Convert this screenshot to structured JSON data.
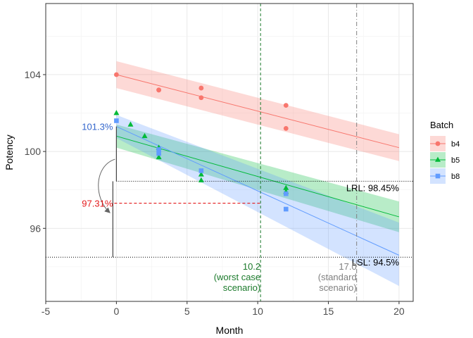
{
  "chart_data": {
    "type": "scatter",
    "xlabel": "Month",
    "ylabel": "Potency",
    "xlim": [
      -5,
      21
    ],
    "ylim": [
      92.2,
      107.7
    ],
    "x_ticks": [
      -5,
      0,
      5,
      10,
      15,
      20
    ],
    "x_tick_labels": [
      "-5",
      "0",
      "5",
      "10",
      "15",
      "20"
    ],
    "y_ticks": [
      96,
      100,
      104
    ],
    "y_tick_labels": [
      "96",
      "100",
      "104"
    ],
    "grid": true,
    "legend": {
      "title": "Batch",
      "position": "right"
    },
    "series": [
      {
        "name": "b4",
        "color": "#F8766D",
        "marker": "circle",
        "points": [
          [
            0,
            104.0
          ],
          [
            3,
            103.2
          ],
          [
            3,
            103.2
          ],
          [
            6,
            103.3
          ],
          [
            6,
            102.8
          ],
          [
            12,
            102.4
          ],
          [
            12,
            101.2
          ]
        ],
        "fit": {
          "x": [
            0,
            20
          ],
          "y": [
            104.0,
            100.2
          ]
        },
        "band": {
          "x": [
            0,
            20
          ],
          "lower": [
            103.3,
            99.5
          ],
          "upper": [
            104.7,
            100.9
          ]
        }
      },
      {
        "name": "b5",
        "color": "#00BA38",
        "marker": "triangle",
        "points": [
          [
            0,
            102.0
          ],
          [
            1,
            101.4
          ],
          [
            2,
            100.8
          ],
          [
            3,
            100.2
          ],
          [
            3,
            99.7
          ],
          [
            6,
            98.8
          ],
          [
            6,
            98.5
          ],
          [
            12,
            98.1
          ],
          [
            12,
            97.9
          ]
        ],
        "fit": {
          "x": [
            0,
            20
          ],
          "y": [
            100.8,
            96.6
          ]
        },
        "band": {
          "x": [
            0,
            20
          ],
          "lower": [
            100.2,
            95.8
          ],
          "upper": [
            101.4,
            97.4
          ]
        }
      },
      {
        "name": "b8",
        "color": "#619CFF",
        "marker": "square",
        "points": [
          [
            0,
            101.6
          ],
          [
            3,
            100.1
          ],
          [
            3,
            99.9
          ],
          [
            6,
            99.0
          ],
          [
            12,
            97.8
          ],
          [
            12,
            97.0
          ]
        ],
        "fit": {
          "x": [
            0,
            20
          ],
          "y": [
            101.3,
            94.6
          ]
        },
        "band": {
          "x": [
            0,
            20
          ],
          "lower": [
            100.7,
            93.0
          ],
          "upper": [
            101.9,
            96.3
          ]
        }
      }
    ],
    "reference_lines": {
      "lrl": {
        "y": 98.45,
        "label": "LRL: 98.45%",
        "x_start": 0
      },
      "lsl": {
        "y": 94.5,
        "label": "LSL: 94.5%"
      },
      "worst_case": {
        "x": 10.2,
        "color": "#1B7A2B",
        "label_lines": [
          "10.2",
          "(worst case",
          "scenario)"
        ]
      },
      "standard": {
        "x": 17.0,
        "color": "#808080",
        "label_lines": [
          "17.0",
          "(standard",
          "scenario)"
        ]
      }
    },
    "annotations": {
      "intercept_label": {
        "text": "101.3%",
        "y": 101.3,
        "color": "#3366CC"
      },
      "worst_label": {
        "text": "97.31%",
        "y": 97.31,
        "x_end": 10.2,
        "color": "#E41A1C"
      },
      "vline_marker": {
        "x": -0.25,
        "y_from": 94.5,
        "y_to": 98.45
      },
      "arc": {
        "from_y": 99.6,
        "to_y": 97.5
      }
    }
  }
}
